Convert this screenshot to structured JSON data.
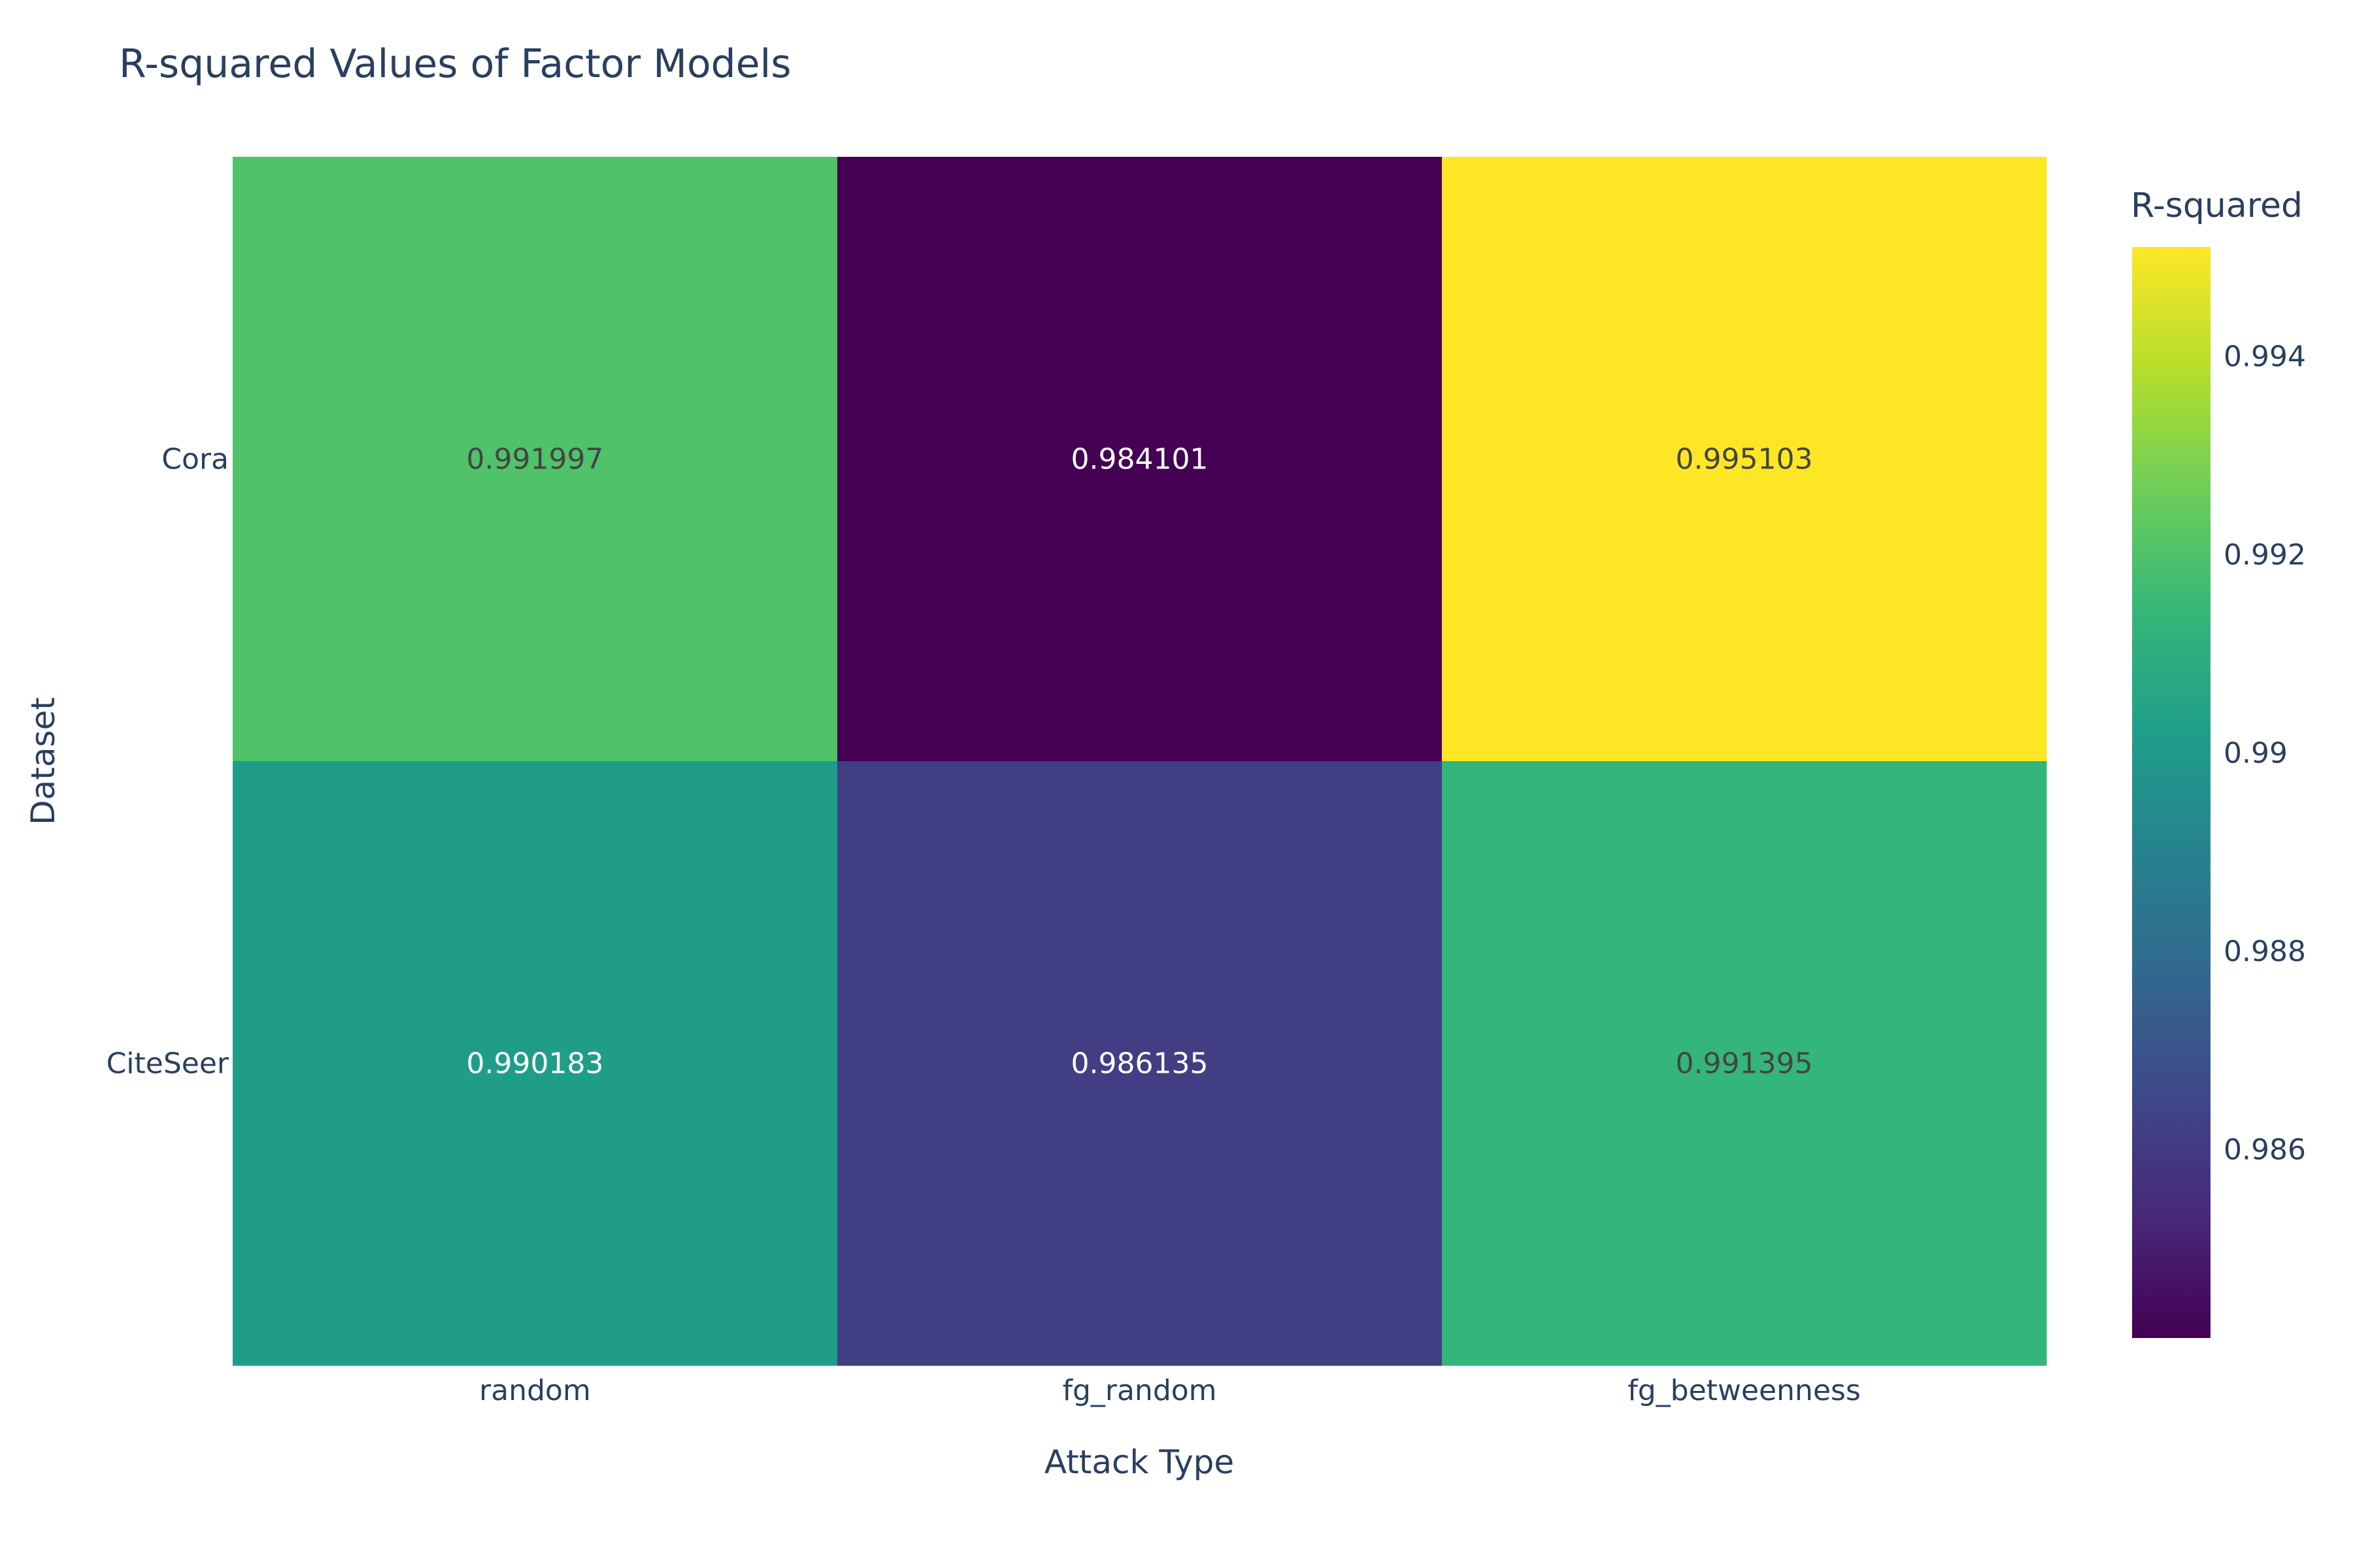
{
  "chart_data": {
    "type": "heatmap",
    "title": "R-squared Values of Factor Models",
    "xlabel": "Attack Type",
    "ylabel": "Dataset",
    "x_categories": [
      "random",
      "fg_random",
      "fg_betweenness"
    ],
    "y_categories": [
      "Cora",
      "CiteSeer"
    ],
    "z": [
      [
        0.991997,
        0.984101,
        0.995103
      ],
      [
        0.990183,
        0.986135,
        0.991395
      ]
    ],
    "cell_labels": [
      [
        "0.991997",
        "0.984101",
        "0.995103"
      ],
      [
        "0.990183",
        "0.986135",
        "0.991395"
      ]
    ],
    "colorbar": {
      "title": "R-squared",
      "colorscale": "Viridis",
      "range": [
        0.984101,
        0.995103
      ],
      "ticks": [
        {
          "value": 0.994,
          "label": "0.994"
        },
        {
          "value": 0.992,
          "label": "0.992"
        },
        {
          "value": 0.99,
          "label": "0.99"
        },
        {
          "value": 0.988,
          "label": "0.988"
        },
        {
          "value": 0.986,
          "label": "0.986"
        }
      ]
    },
    "grid": false,
    "legend": "colorbar-right"
  },
  "colors": {
    "text": "#2a3f5f",
    "background": "#ffffff",
    "viridis": [
      "#440154",
      "#482878",
      "#3e4989",
      "#31688e",
      "#26828e",
      "#1f9e89",
      "#35b779",
      "#6ece58",
      "#b5de2b",
      "#fde725"
    ]
  }
}
